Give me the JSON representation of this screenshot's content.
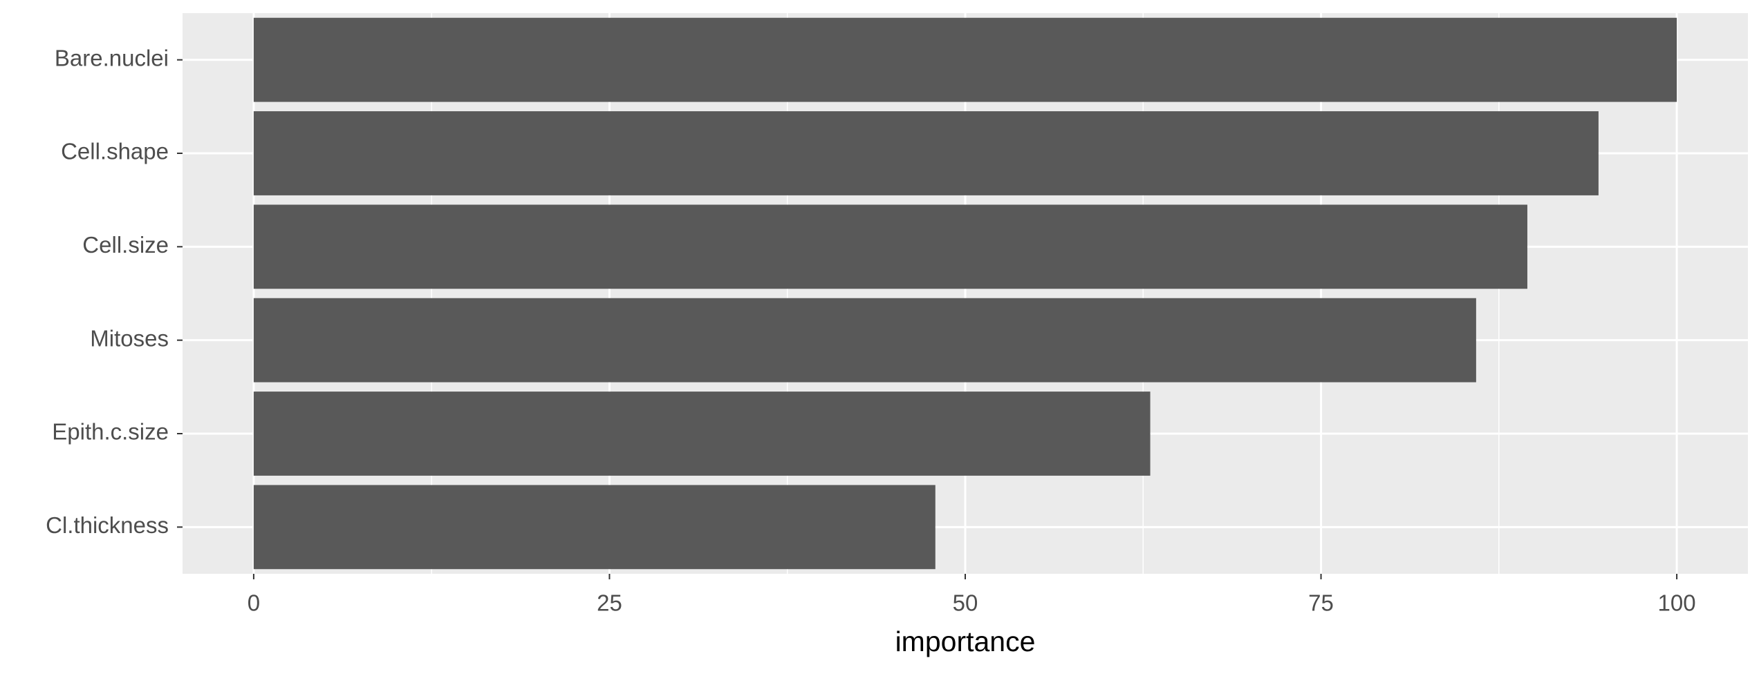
{
  "chart_data": {
    "type": "bar",
    "x_label": "importance",
    "categories": [
      "Bare.nuclei",
      "Cell.shape",
      "Cell.size",
      "Mitoses",
      "Epith.c.size",
      "Cl.thickness"
    ],
    "values": [
      100,
      94.5,
      89.5,
      85.9,
      63.0,
      47.9
    ],
    "color": "#595959",
    "xlim": [
      -5,
      105
    ],
    "xticks": [
      0,
      25,
      50,
      75,
      100
    ],
    "grid": true
  }
}
